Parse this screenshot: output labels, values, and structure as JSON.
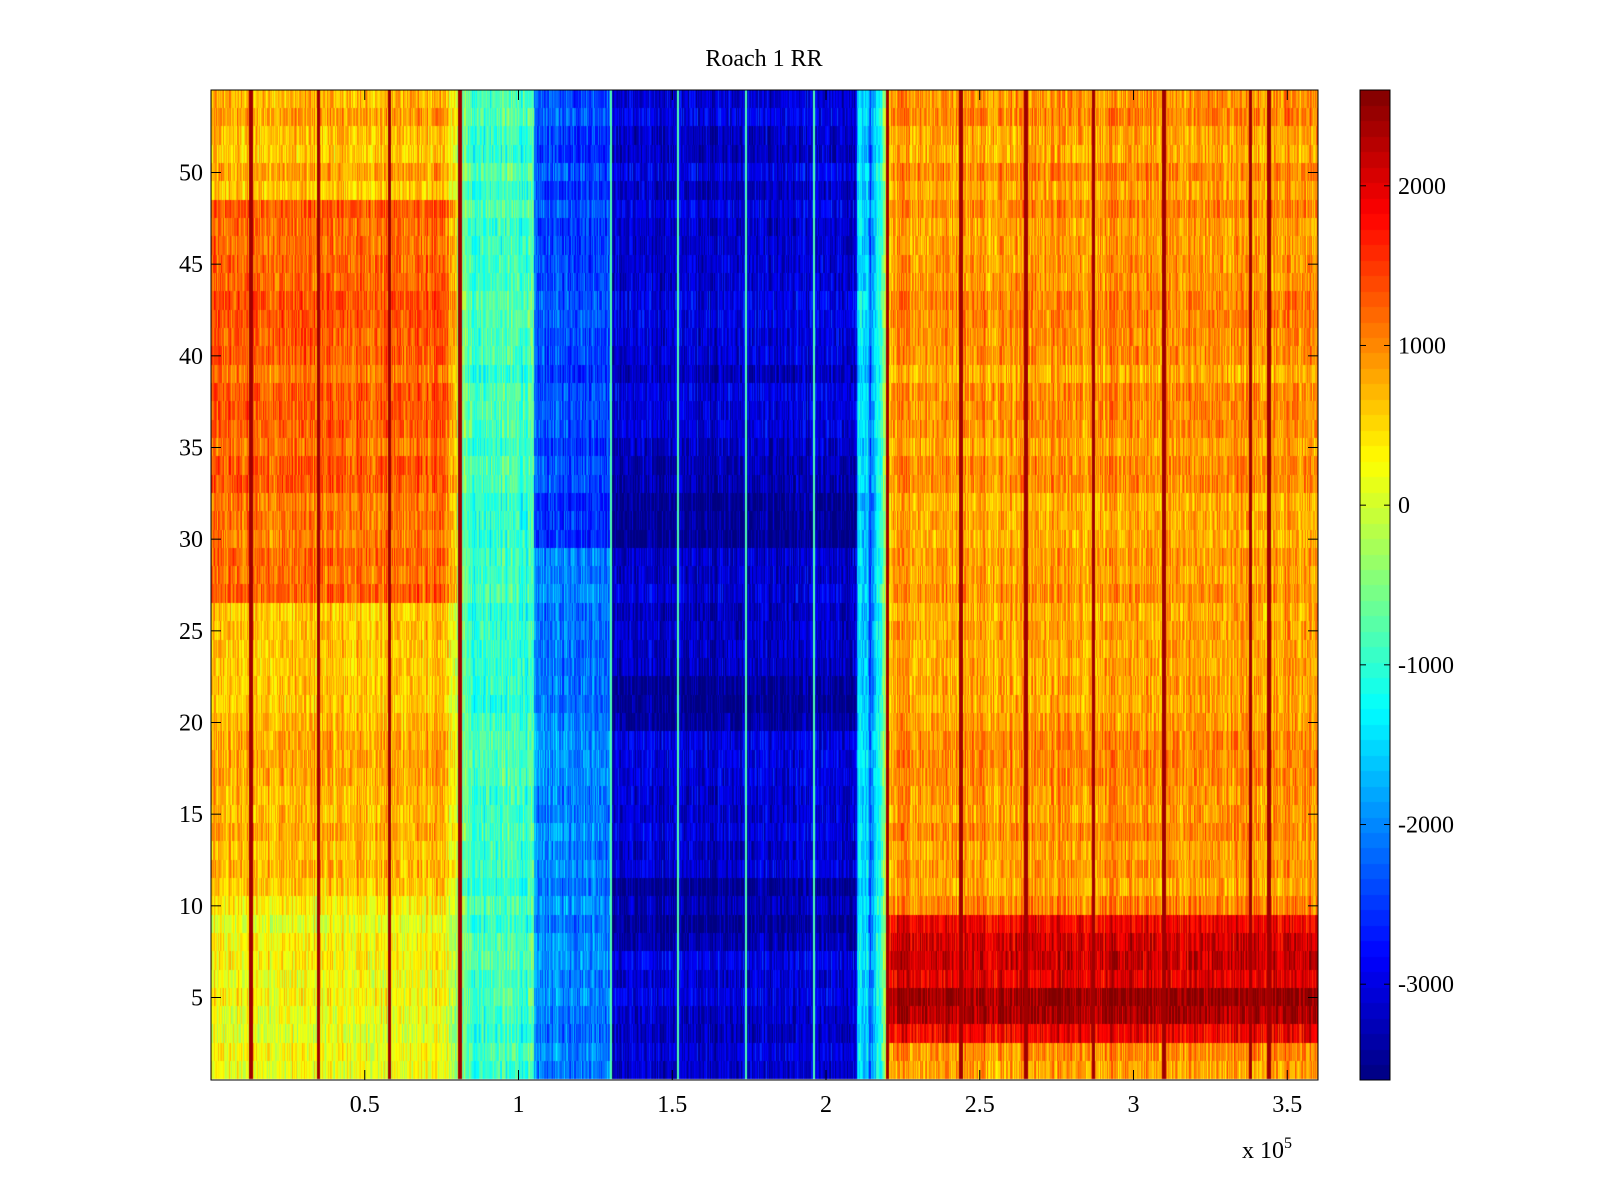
{
  "chart_data": {
    "type": "heatmap",
    "title": "Roach 1 RR",
    "xlabel": "",
    "ylabel": "",
    "x_exponent_label": "x 10",
    "x_exponent_power": "5",
    "xlim": [
      0,
      3.6
    ],
    "ylim": [
      0.5,
      54.5
    ],
    "rows": 54,
    "x_ticks": [
      0.5,
      1,
      1.5,
      2,
      2.5,
      3,
      3.5
    ],
    "x_tick_labels": [
      "0.5",
      "1",
      "1.5",
      "2",
      "2.5",
      "3",
      "3.5"
    ],
    "y_ticks": [
      5,
      10,
      15,
      20,
      25,
      30,
      35,
      40,
      45,
      50
    ],
    "y_tick_labels": [
      "5",
      "10",
      "15",
      "20",
      "25",
      "30",
      "35",
      "40",
      "45",
      "50"
    ],
    "colormap": "jet",
    "clim": [
      -3600,
      2600
    ],
    "colorbar_ticks": [
      2000,
      1000,
      0,
      -1000,
      -2000,
      -3000
    ],
    "colorbar_tick_labels": [
      "2000",
      "1000",
      "0",
      "-1000",
      "-2000",
      "-3000"
    ],
    "column_bands": [
      {
        "x_start": 0,
        "x_end": 0.8,
        "approx_value": 700
      },
      {
        "x_start": 0.8,
        "x_end": 1.05,
        "approx_value": -900
      },
      {
        "x_start": 1.05,
        "x_end": 1.3,
        "approx_value": -2000
      },
      {
        "x_start": 1.3,
        "x_end": 2.1,
        "approx_value": -3100
      },
      {
        "x_start": 2.1,
        "x_end": 2.2,
        "approx_value": -1500
      },
      {
        "x_start": 2.2,
        "x_end": 3.6,
        "approx_value": 900
      }
    ],
    "notable_features": [
      "Rows 27-48 warmer (about 1200) for x < 0.8",
      "Rows 3-9 very high (about 2400) for x > 2.2",
      "Dark-red vertical stripes near x = 2.87 and x = 3.1"
    ]
  }
}
